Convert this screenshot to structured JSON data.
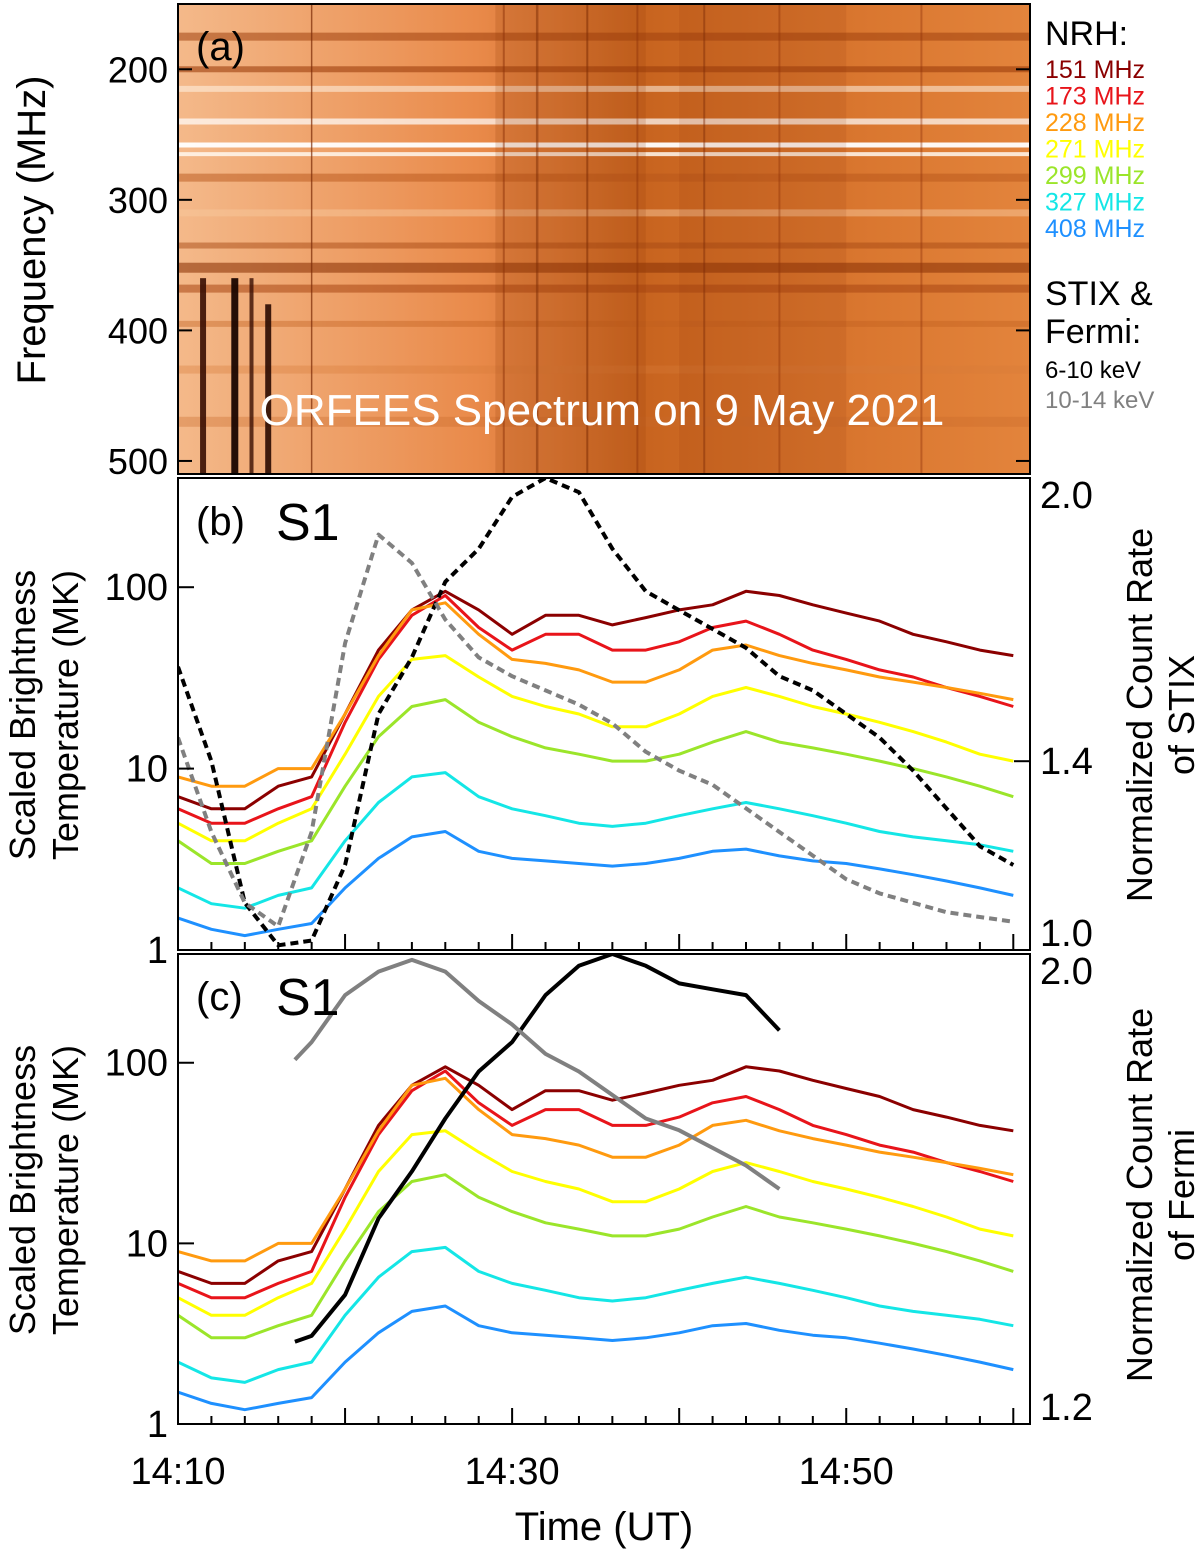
{
  "panel_a": {
    "label": "(a)",
    "title": "ORFEES Spectrum on 9 May 2021",
    "ylabel": "Frequency (MHz)",
    "yticks": [
      "200",
      "300",
      "400",
      "500"
    ]
  },
  "panel_b": {
    "label": "(b)",
    "source_tag": "S1",
    "ylabel_line1": "Scaled Brightness",
    "ylabel_line2": "Temperature (MK)",
    "yticks": [
      "1",
      "10",
      "100"
    ],
    "y2label_line1": "Normalized Count Rate",
    "y2label_line2": "of STIX",
    "y2ticks": [
      "1.0",
      "1.4",
      "2.0"
    ]
  },
  "panel_c": {
    "label": "(c)",
    "source_tag": "S1",
    "ylabel_line1": "Scaled Brightness",
    "ylabel_line2": "Temperature (MK)",
    "yticks": [
      "1",
      "10",
      "100"
    ],
    "y2label_line1": "Normalized Count Rate",
    "y2label_line2": "of Fermi",
    "y2ticks": [
      "1.2",
      "2.0"
    ]
  },
  "xaxis": {
    "label": "Time (UT)",
    "ticks": [
      "14:10",
      "14:30",
      "14:50"
    ]
  },
  "legend": {
    "nrh_title": "NRH:",
    "nrh_items": [
      {
        "label": "151 MHz",
        "color": "#8b0000"
      },
      {
        "label": "173 MHz",
        "color": "#e8141a"
      },
      {
        "label": "228 MHz",
        "color": "#ff9a0f"
      },
      {
        "label": "271 MHz",
        "color": "#ffff00"
      },
      {
        "label": "299 MHz",
        "color": "#9be52a"
      },
      {
        "label": "327 MHz",
        "color": "#14e6e6"
      },
      {
        "label": "408 MHz",
        "color": "#1e90ff"
      }
    ],
    "xray_title_line1": "STIX &",
    "xray_title_line2": "Fermi:",
    "xray_items": [
      {
        "label": "6-10 keV",
        "color": "#000000"
      },
      {
        "label": "10-14 keV",
        "color": "#808080"
      }
    ]
  },
  "chart_data": [
    {
      "type": "heatmap",
      "panel": "a",
      "title": "ORFEES Spectrum on 9 May 2021",
      "xlabel": "Time (UT)",
      "ylabel": "Frequency (MHz)",
      "xlim": [
        "14:10",
        "15:01"
      ],
      "ylim": [
        150,
        510
      ],
      "y_reversed": true,
      "colormap": "orange-white-black"
    },
    {
      "type": "line",
      "panel": "b",
      "x_unit": "minutes after 14:10 UT",
      "xlim": [
        0,
        51
      ],
      "y_scale": "log",
      "ylim": [
        1,
        400
      ],
      "y2lim": [
        1.0,
        2.0
      ],
      "ylabel": "Scaled Brightness Temperature (MK)",
      "y2label": "Normalized Count Rate of STIX",
      "x": [
        0,
        2,
        4,
        6,
        8,
        10,
        12,
        14,
        16,
        18,
        20,
        22,
        24,
        26,
        28,
        30,
        32,
        34,
        36,
        38,
        40,
        42,
        44,
        46,
        48,
        50
      ],
      "series": [
        {
          "name": "151 MHz",
          "axis": "left",
          "color": "#8b0000",
          "values": [
            7,
            6,
            6,
            8,
            9,
            20,
            45,
            75,
            95,
            75,
            55,
            70,
            70,
            62,
            68,
            75,
            80,
            95,
            90,
            80,
            72,
            65,
            55,
            50,
            45,
            42
          ]
        },
        {
          "name": "173 MHz",
          "axis": "left",
          "color": "#e8141a",
          "values": [
            6,
            5,
            5,
            6,
            7,
            18,
            40,
            70,
            90,
            60,
            45,
            55,
            55,
            45,
            45,
            50,
            60,
            65,
            55,
            45,
            40,
            35,
            32,
            28,
            25,
            22
          ]
        },
        {
          "name": "228 MHz",
          "axis": "left",
          "color": "#ff9a0f",
          "values": [
            9,
            8,
            8,
            10,
            10,
            20,
            42,
            75,
            82,
            55,
            40,
            38,
            35,
            30,
            30,
            35,
            45,
            48,
            42,
            38,
            35,
            32,
            30,
            28,
            26,
            24
          ]
        },
        {
          "name": "271 MHz",
          "axis": "left",
          "color": "#ffff00",
          "values": [
            5,
            4,
            4,
            5,
            6,
            12,
            25,
            40,
            42,
            32,
            25,
            22,
            20,
            17,
            17,
            20,
            25,
            28,
            25,
            22,
            20,
            18,
            16,
            14,
            12,
            11
          ]
        },
        {
          "name": "299 MHz",
          "axis": "left",
          "color": "#9be52a",
          "values": [
            4,
            3,
            3,
            3.5,
            4,
            8,
            15,
            22,
            24,
            18,
            15,
            13,
            12,
            11,
            11,
            12,
            14,
            16,
            14,
            13,
            12,
            11,
            10,
            9,
            8,
            7
          ]
        },
        {
          "name": "327 MHz",
          "axis": "left",
          "color": "#14e6e6",
          "values": [
            2.2,
            1.8,
            1.7,
            2,
            2.2,
            4,
            6.5,
            9,
            9.5,
            7,
            6,
            5.5,
            5,
            4.8,
            5,
            5.5,
            6,
            6.5,
            6,
            5.5,
            5,
            4.5,
            4.2,
            4,
            3.8,
            3.5
          ]
        },
        {
          "name": "408 MHz",
          "axis": "left",
          "color": "#1e90ff",
          "values": [
            1.5,
            1.3,
            1.2,
            1.3,
            1.4,
            2.2,
            3.2,
            4.2,
            4.5,
            3.5,
            3.2,
            3.1,
            3,
            2.9,
            3,
            3.2,
            3.5,
            3.6,
            3.3,
            3.1,
            3,
            2.8,
            2.6,
            2.4,
            2.2,
            2
          ]
        },
        {
          "name": "6-10 keV",
          "axis": "right",
          "color": "#000000",
          "dashed": true,
          "values": [
            1.6,
            1.4,
            1.1,
            1.01,
            1.02,
            1.18,
            1.5,
            1.62,
            1.78,
            1.85,
            1.96,
            2.0,
            1.97,
            1.85,
            1.76,
            1.72,
            1.68,
            1.64,
            1.58,
            1.55,
            1.5,
            1.45,
            1.38,
            1.3,
            1.22,
            1.18
          ]
        },
        {
          "name": "10-14 keV",
          "axis": "right",
          "color": "#808080",
          "dashed": true,
          "values": [
            1.45,
            1.25,
            1.1,
            1.05,
            1.25,
            1.65,
            1.88,
            1.82,
            1.7,
            1.62,
            1.58,
            1.55,
            1.52,
            1.48,
            1.42,
            1.38,
            1.35,
            1.3,
            1.25,
            1.2,
            1.15,
            1.12,
            1.1,
            1.08,
            1.07,
            1.06
          ]
        }
      ]
    },
    {
      "type": "line",
      "panel": "c",
      "x_unit": "minutes after 14:10 UT",
      "xlim": [
        0,
        51
      ],
      "y_scale": "log",
      "ylim": [
        1,
        400
      ],
      "y2lim": [
        1.2,
        2.0
      ],
      "ylabel": "Scaled Brightness Temperature (MK)",
      "y2label": "Normalized Count Rate of Fermi",
      "x": [
        0,
        2,
        4,
        6,
        8,
        10,
        12,
        14,
        16,
        18,
        20,
        22,
        24,
        26,
        28,
        30,
        32,
        34,
        36,
        38,
        40,
        42,
        44,
        46,
        48,
        50
      ],
      "series": [
        {
          "name": "151 MHz",
          "axis": "left",
          "color": "#8b0000",
          "values": [
            7,
            6,
            6,
            8,
            9,
            20,
            45,
            75,
            95,
            75,
            55,
            70,
            70,
            62,
            68,
            75,
            80,
            95,
            90,
            80,
            72,
            65,
            55,
            50,
            45,
            42
          ]
        },
        {
          "name": "173 MHz",
          "axis": "left",
          "color": "#e8141a",
          "values": [
            6,
            5,
            5,
            6,
            7,
            18,
            40,
            70,
            90,
            60,
            45,
            55,
            55,
            45,
            45,
            50,
            60,
            65,
            55,
            45,
            40,
            35,
            32,
            28,
            25,
            22
          ]
        },
        {
          "name": "228 MHz",
          "axis": "left",
          "color": "#ff9a0f",
          "values": [
            9,
            8,
            8,
            10,
            10,
            20,
            42,
            75,
            82,
            55,
            40,
            38,
            35,
            30,
            30,
            35,
            45,
            48,
            42,
            38,
            35,
            32,
            30,
            28,
            26,
            24
          ]
        },
        {
          "name": "271 MHz",
          "axis": "left",
          "color": "#ffff00",
          "values": [
            5,
            4,
            4,
            5,
            6,
            12,
            25,
            40,
            42,
            32,
            25,
            22,
            20,
            17,
            17,
            20,
            25,
            28,
            25,
            22,
            20,
            18,
            16,
            14,
            12,
            11
          ]
        },
        {
          "name": "299 MHz",
          "axis": "left",
          "color": "#9be52a",
          "values": [
            4,
            3,
            3,
            3.5,
            4,
            8,
            15,
            22,
            24,
            18,
            15,
            13,
            12,
            11,
            11,
            12,
            14,
            16,
            14,
            13,
            12,
            11,
            10,
            9,
            8,
            7
          ]
        },
        {
          "name": "327 MHz",
          "axis": "left",
          "color": "#14e6e6",
          "values": [
            2.2,
            1.8,
            1.7,
            2,
            2.2,
            4,
            6.5,
            9,
            9.5,
            7,
            6,
            5.5,
            5,
            4.8,
            5,
            5.5,
            6,
            6.5,
            6,
            5.5,
            5,
            4.5,
            4.2,
            4,
            3.8,
            3.5
          ]
        },
        {
          "name": "408 MHz",
          "axis": "left",
          "color": "#1e90ff",
          "values": [
            1.5,
            1.3,
            1.2,
            1.3,
            1.4,
            2.2,
            3.2,
            4.2,
            4.5,
            3.5,
            3.2,
            3.1,
            3,
            2.9,
            3,
            3.2,
            3.5,
            3.6,
            3.3,
            3.1,
            3,
            2.8,
            2.6,
            2.4,
            2.2,
            2
          ]
        },
        {
          "name": "6-10 keV",
          "axis": "right",
          "color": "#000000",
          "x": [
            7,
            8,
            10,
            12,
            14,
            16,
            18,
            20,
            22,
            24,
            26,
            28,
            30,
            32,
            34,
            36
          ],
          "values": [
            1.34,
            1.35,
            1.42,
            1.55,
            1.63,
            1.72,
            1.8,
            1.85,
            1.93,
            1.98,
            2.0,
            1.98,
            1.95,
            1.94,
            1.93,
            1.87
          ]
        },
        {
          "name": "10-14 keV",
          "axis": "right",
          "color": "#808080",
          "x": [
            7,
            8,
            10,
            12,
            14,
            16,
            18,
            20,
            22,
            24,
            26,
            28,
            30,
            32,
            34,
            36
          ],
          "values": [
            1.82,
            1.85,
            1.93,
            1.97,
            1.99,
            1.97,
            1.92,
            1.88,
            1.83,
            1.8,
            1.76,
            1.72,
            1.7,
            1.67,
            1.64,
            1.6
          ]
        }
      ]
    }
  ]
}
